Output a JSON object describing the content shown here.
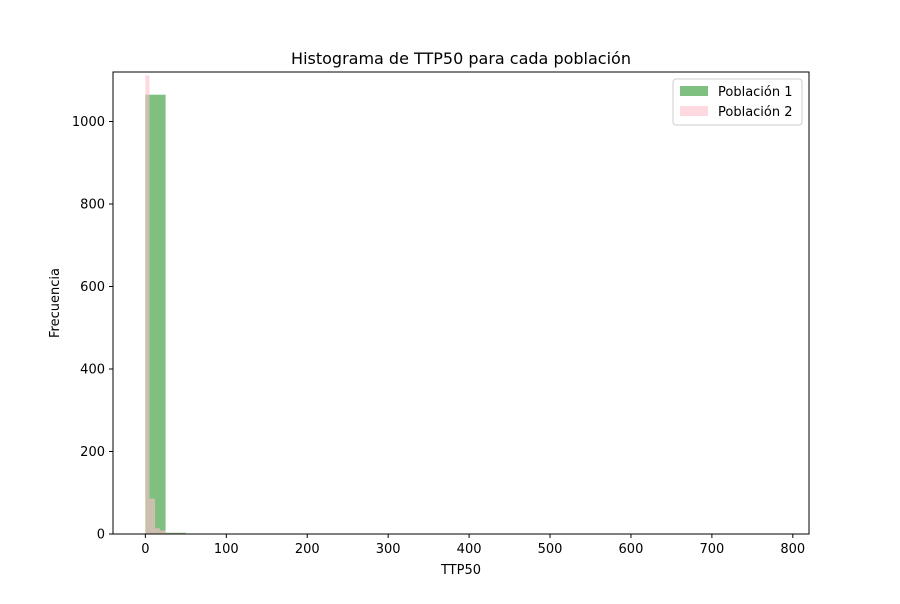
{
  "chart_data": {
    "type": "bar",
    "title": "Histograma de TTP50 para cada población",
    "xlabel": "TTP50",
    "ylabel": "Frecuencia",
    "xlim": [
      -40,
      820
    ],
    "ylim": [
      0,
      1120
    ],
    "xticks": [
      0,
      100,
      200,
      300,
      400,
      500,
      600,
      700,
      800
    ],
    "yticks": [
      0,
      200,
      400,
      600,
      800,
      1000
    ],
    "grid": false,
    "legend_position": "top-right",
    "series": [
      {
        "name": "Población 1",
        "color": "#7fbf7f",
        "bins": [
          {
            "x0": 0,
            "x1": 5,
            "count": 1065
          },
          {
            "x0": 5,
            "x1": 25,
            "count": 1065
          },
          {
            "x0": 25,
            "x1": 50,
            "count": 3
          },
          {
            "x0": 50,
            "x1": 60,
            "count": 1
          }
        ]
      },
      {
        "name": "Población 2",
        "color": "#ffc0cb",
        "bins": [
          {
            "x0": 0,
            "x1": 5,
            "count": 1112
          },
          {
            "x0": 5,
            "x1": 12,
            "count": 86
          },
          {
            "x0": 12,
            "x1": 18,
            "count": 14
          },
          {
            "x0": 18,
            "x1": 25,
            "count": 9
          },
          {
            "x0": 25,
            "x1": 50,
            "count": 2
          }
        ]
      }
    ]
  }
}
